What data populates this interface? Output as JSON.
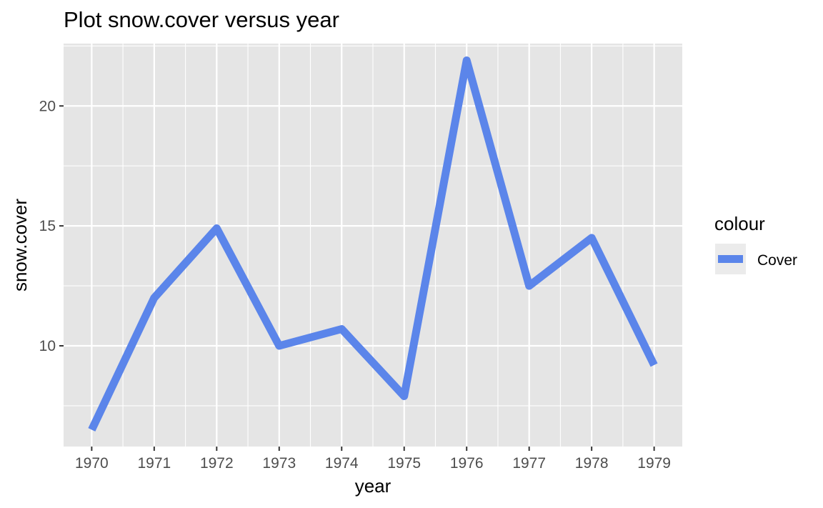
{
  "chart_data": {
    "type": "line",
    "title": "Plot snow.cover versus year",
    "xlabel": "year",
    "ylabel": "snow.cover",
    "x": [
      1970,
      1971,
      1972,
      1973,
      1974,
      1975,
      1976,
      1977,
      1978,
      1979
    ],
    "series": [
      {
        "name": "Cover",
        "values": [
          6.5,
          12.0,
          14.9,
          10.0,
          10.7,
          7.9,
          21.9,
          12.5,
          14.5,
          9.2
        ],
        "color": "#5b85ea"
      }
    ],
    "xticks": [
      "1970",
      "1971",
      "1972",
      "1973",
      "1974",
      "1975",
      "1976",
      "1977",
      "1978",
      "1979"
    ],
    "yticks": [
      "10",
      "15",
      "20"
    ],
    "xlim": [
      1969.55,
      1979.45
    ],
    "ylim": [
      5.8,
      22.6
    ],
    "grid": true,
    "legend": {
      "title": "colour",
      "placement": "right"
    },
    "colors": {
      "panel": "#e5e5e5",
      "grid": "#ffffff",
      "line": "#5b85ea",
      "legend_key": "#ebebeb"
    }
  }
}
